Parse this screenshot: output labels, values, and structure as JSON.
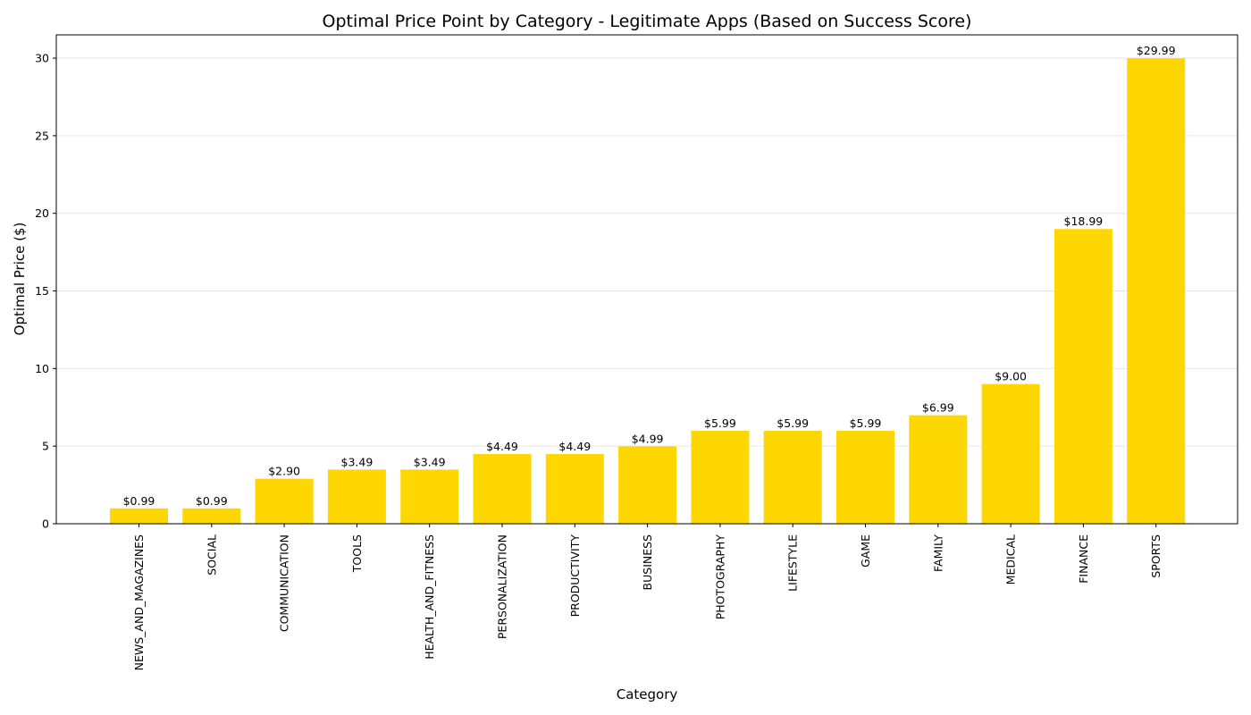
{
  "chart_data": {
    "type": "bar",
    "title": "Optimal Price Point by Category - Legitimate Apps (Based on Success Score)",
    "xlabel": "Category",
    "ylabel": "Optimal Price ($)",
    "ylim": [
      0,
      31.5
    ],
    "yticks": [
      0,
      5,
      10,
      15,
      20,
      25,
      30
    ],
    "grid": "horizontal",
    "bar_color": "#FFD700",
    "categories": [
      "NEWS_AND_MAGAZINES",
      "SOCIAL",
      "COMMUNICATION",
      "TOOLS",
      "HEALTH_AND_FITNESS",
      "PERSONALIZATION",
      "PRODUCTIVITY",
      "BUSINESS",
      "PHOTOGRAPHY",
      "LIFESTYLE",
      "GAME",
      "FAMILY",
      "MEDICAL",
      "FINANCE",
      "SPORTS"
    ],
    "values": [
      0.99,
      0.99,
      2.9,
      3.49,
      3.49,
      4.49,
      4.49,
      4.99,
      5.99,
      5.99,
      5.99,
      6.99,
      9.0,
      18.99,
      29.99
    ],
    "data_labels": [
      "$0.99",
      "$0.99",
      "$2.90",
      "$3.49",
      "$3.49",
      "$4.49",
      "$4.49",
      "$4.99",
      "$5.99",
      "$5.99",
      "$5.99",
      "$6.99",
      "$9.00",
      "$18.99",
      "$29.99"
    ]
  }
}
